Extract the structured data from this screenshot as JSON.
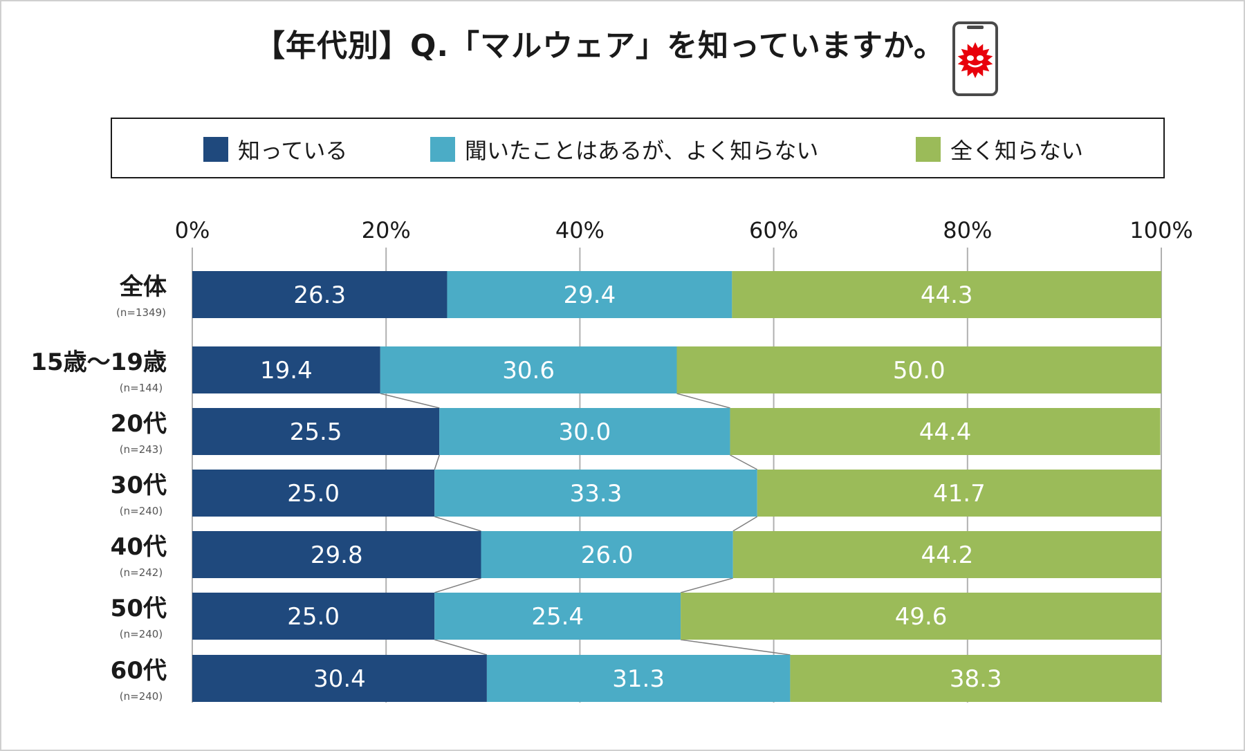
{
  "title": "【年代別】Q.「マルウェア」を知っていますか。",
  "icons": {
    "title_icon": "phone-malware-icon"
  },
  "colors": {
    "known": "#1f497d",
    "heard": "#4bacc6",
    "unknown": "#9bbb59",
    "text_on_bar": "#ffffff",
    "grid": "#b0b0b0",
    "connector": "#7f7f7f",
    "virus": "#e8000b"
  },
  "legend": {
    "items": [
      {
        "label": "知っている",
        "color": "#1f497d"
      },
      {
        "label": "聞いたことはあるが、よく知らない",
        "color": "#4bacc6"
      },
      {
        "label": "全く知らない",
        "color": "#9bbb59"
      }
    ]
  },
  "chart_data": {
    "type": "bar",
    "orientation": "horizontal",
    "stacked": "percent",
    "title": "【年代別】Q.「マルウェア」を知っていますか。",
    "xlim": [
      0,
      100
    ],
    "x_ticks": [
      "0%",
      "20%",
      "40%",
      "60%",
      "80%",
      "100%"
    ],
    "grid": true,
    "legend_position": "top",
    "categories": [
      "全体",
      "15歳～19歳",
      "20代",
      "30代",
      "40代",
      "50代",
      "60代"
    ],
    "sample_sizes": [
      "(n=1349)",
      "(n=144)",
      "(n=243)",
      "(n=240)",
      "(n=242)",
      "(n=240)",
      "(n=240)"
    ],
    "series": [
      {
        "name": "知っている",
        "values": [
          26.3,
          19.4,
          25.5,
          25.0,
          29.8,
          25.0,
          30.4
        ]
      },
      {
        "name": "聞いたことはあるが、よく知らない",
        "values": [
          29.4,
          30.6,
          30.0,
          33.3,
          26.0,
          25.4,
          31.3
        ]
      },
      {
        "name": "全く知らない",
        "values": [
          44.3,
          50.0,
          44.4,
          41.7,
          44.2,
          49.6,
          38.3
        ]
      }
    ],
    "data_labels": [
      [
        "26.3",
        "29.4",
        "44.3"
      ],
      [
        "19.4",
        "30.6",
        "50.0"
      ],
      [
        "25.5",
        "30.0",
        "44.4"
      ],
      [
        "25.0",
        "33.3",
        "41.7"
      ],
      [
        "29.8",
        "26.0",
        "44.2"
      ],
      [
        "25.0",
        "25.4",
        "49.6"
      ],
      [
        "30.4",
        "31.3",
        "38.3"
      ]
    ]
  }
}
